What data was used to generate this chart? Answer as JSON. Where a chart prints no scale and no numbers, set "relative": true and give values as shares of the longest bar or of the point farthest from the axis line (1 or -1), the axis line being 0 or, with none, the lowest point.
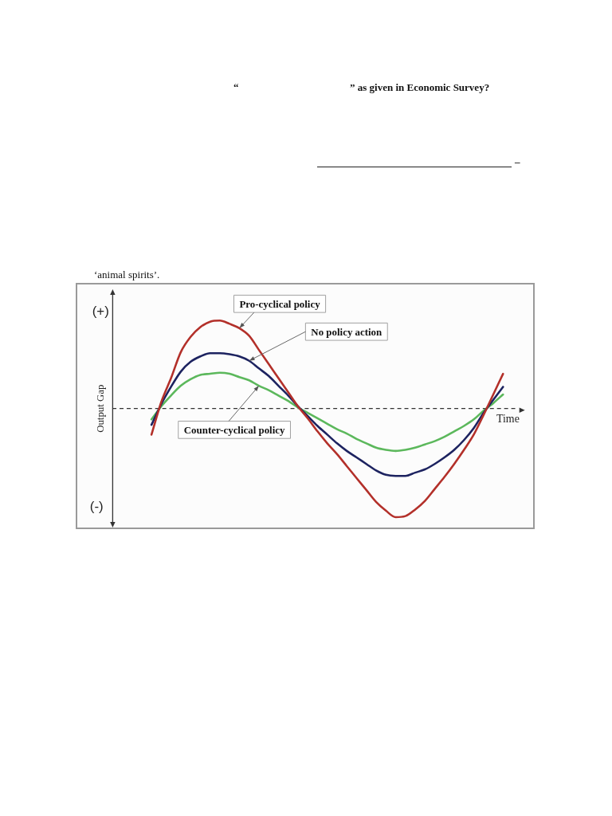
{
  "chart_data": {
    "type": "line",
    "relative": true,
    "marker": "none",
    "xlabel": "Time",
    "ylabel": "Output Gap",
    "annotations": [
      "“",
      "” as given in Economic Survey?",
      "–",
      "‘animal spirits’.",
      "(+)",
      "(-)"
    ],
    "ref_lines": [
      {
        "axis": "y",
        "value": 0,
        "label": null,
        "color": "#333333",
        "line_style": "dashed"
      }
    ],
    "categories": [
      null,
      null,
      null,
      null,
      null,
      null,
      null,
      null,
      null,
      null,
      null,
      null,
      null,
      null,
      null,
      null,
      null,
      null,
      null,
      null,
      null,
      null,
      null,
      null,
      null,
      null,
      null,
      null,
      null,
      null,
      null,
      null,
      null,
      null,
      null,
      null,
      null,
      null,
      null,
      null,
      null,
      null,
      null
    ],
    "series": [
      {
        "name": "Pro-cyclical policy",
        "color": "#b3302a",
        "values": [
          null,
          null,
          null,
          null,
          -0.24,
          0.06,
          0.28,
          0.52,
          0.66,
          0.75,
          0.8,
          0.81,
          0.78,
          0.74,
          0.67,
          0.54,
          0.41,
          0.28,
          0.15,
          0.02,
          -0.09,
          -0.21,
          -0.32,
          -0.42,
          -0.53,
          -0.64,
          -0.75,
          -0.86,
          -0.94,
          -1,
          -0.99,
          -0.93,
          -0.85,
          -0.74,
          -0.63,
          -0.51,
          -0.38,
          -0.24,
          -0.06,
          0.13,
          0.32,
          null,
          null
        ]
      },
      {
        "name": "No policy action",
        "color": "#1d2360",
        "values": [
          null,
          null,
          null,
          null,
          -0.15,
          0.04,
          0.2,
          0.34,
          0.43,
          0.48,
          0.51,
          0.51,
          0.5,
          0.48,
          0.44,
          0.37,
          0.3,
          0.21,
          0.12,
          0.02,
          -0.07,
          -0.16,
          -0.24,
          -0.32,
          -0.39,
          -0.45,
          -0.51,
          -0.57,
          -0.61,
          -0.62,
          -0.62,
          -0.59,
          -0.56,
          -0.51,
          -0.45,
          -0.38,
          -0.29,
          -0.18,
          -0.04,
          0.08,
          0.2,
          null,
          null
        ]
      },
      {
        "name": "Counter-cyclical policy",
        "color": "#5cb85c",
        "values": [
          null,
          null,
          null,
          null,
          -0.1,
          0.02,
          0.12,
          0.21,
          0.27,
          0.31,
          0.32,
          0.33,
          0.32,
          0.29,
          0.26,
          0.21,
          0.17,
          0.12,
          0.07,
          0.01,
          -0.04,
          -0.09,
          -0.14,
          -0.19,
          -0.23,
          -0.28,
          -0.32,
          -0.36,
          -0.38,
          -0.39,
          -0.38,
          -0.36,
          -0.33,
          -0.3,
          -0.26,
          -0.21,
          -0.16,
          -0.1,
          -0.02,
          0.05,
          0.13,
          null,
          null
        ]
      }
    ]
  }
}
